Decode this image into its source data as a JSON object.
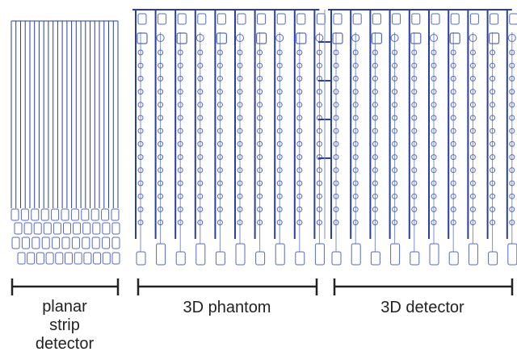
{
  "colors": {
    "line": "#2b3f9e",
    "pad": "#5568c0",
    "light": "#7f8fd2",
    "bracket": "#222222",
    "text": "#222222",
    "background": "#ffffff"
  },
  "labels": {
    "planar_line1": "planar",
    "planar_line2": "strip",
    "planar_line3": "detector",
    "phantom": "3D phantom",
    "detector": "3D detector"
  }
}
